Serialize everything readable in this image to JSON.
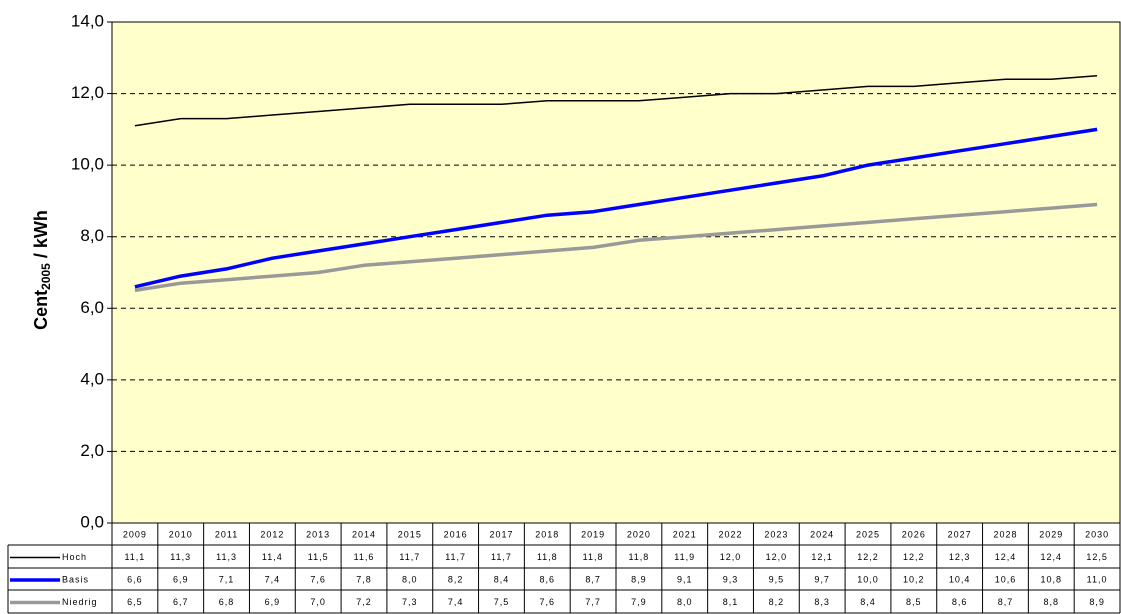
{
  "chart_data": {
    "type": "line",
    "y_label": "Cent",
    "y_label_sub": "2005",
    "y_label_suffix": " / kWh",
    "categories": [
      "2009",
      "2010",
      "2011",
      "2012",
      "2013",
      "2014",
      "2015",
      "2016",
      "2017",
      "2018",
      "2019",
      "2020",
      "2021",
      "2022",
      "2023",
      "2024",
      "2025",
      "2026",
      "2027",
      "2028",
      "2029",
      "2030"
    ],
    "series": [
      {
        "name": "Hoch",
        "color": "#000000",
        "width": 1.5,
        "values": [
          11.1,
          11.3,
          11.3,
          11.4,
          11.5,
          11.6,
          11.7,
          11.7,
          11.7,
          11.8,
          11.8,
          11.8,
          11.9,
          12.0,
          12.0,
          12.1,
          12.2,
          12.2,
          12.3,
          12.4,
          12.4,
          12.5
        ],
        "value_labels": [
          "11,1",
          "11,3",
          "11,3",
          "11,4",
          "11,5",
          "11,6",
          "11,7",
          "11,7",
          "11,7",
          "11,8",
          "11,8",
          "11,8",
          "11,9",
          "12,0",
          "12,0",
          "12,1",
          "12,2",
          "12,2",
          "12,3",
          "12,4",
          "12,4",
          "12,5"
        ]
      },
      {
        "name": "Basis",
        "color": "#0000ff",
        "width": 3.5,
        "values": [
          6.6,
          6.9,
          7.1,
          7.4,
          7.6,
          7.8,
          8.0,
          8.2,
          8.4,
          8.6,
          8.7,
          8.9,
          9.1,
          9.3,
          9.5,
          9.7,
          10.0,
          10.2,
          10.4,
          10.6,
          10.8,
          11.0
        ],
        "value_labels": [
          "6,6",
          "6,9",
          "7,1",
          "7,4",
          "7,6",
          "7,8",
          "8,0",
          "8,2",
          "8,4",
          "8,6",
          "8,7",
          "8,9",
          "9,1",
          "9,3",
          "9,5",
          "9,7",
          "10,0",
          "10,2",
          "10,4",
          "10,6",
          "10,8",
          "11,0"
        ]
      },
      {
        "name": "Niedrig",
        "color": "#999999",
        "width": 3.5,
        "values": [
          6.5,
          6.7,
          6.8,
          6.9,
          7.0,
          7.2,
          7.3,
          7.4,
          7.5,
          7.6,
          7.7,
          7.9,
          8.0,
          8.1,
          8.2,
          8.3,
          8.4,
          8.5,
          8.6,
          8.7,
          8.8,
          8.9
        ],
        "value_labels": [
          "6,5",
          "6,7",
          "6,8",
          "6,9",
          "7,0",
          "7,2",
          "7,3",
          "7,4",
          "7,5",
          "7,6",
          "7,7",
          "7,9",
          "8,0",
          "8,1",
          "8,2",
          "8,3",
          "8,4",
          "8,5",
          "8,6",
          "8,7",
          "8,8",
          "8,9"
        ]
      }
    ],
    "ylim": [
      0,
      14
    ],
    "yticks": [
      {
        "value": 0,
        "label": "0,0"
      },
      {
        "value": 2,
        "label": "2,0"
      },
      {
        "value": 4,
        "label": "4,0"
      },
      {
        "value": 6,
        "label": "6,0"
      },
      {
        "value": 8,
        "label": "8,0"
      },
      {
        "value": 10,
        "label": "10,0"
      },
      {
        "value": 12,
        "label": "12,0"
      },
      {
        "value": 14,
        "label": "14,0"
      }
    ],
    "grid": true,
    "background": "#ffffcc"
  }
}
